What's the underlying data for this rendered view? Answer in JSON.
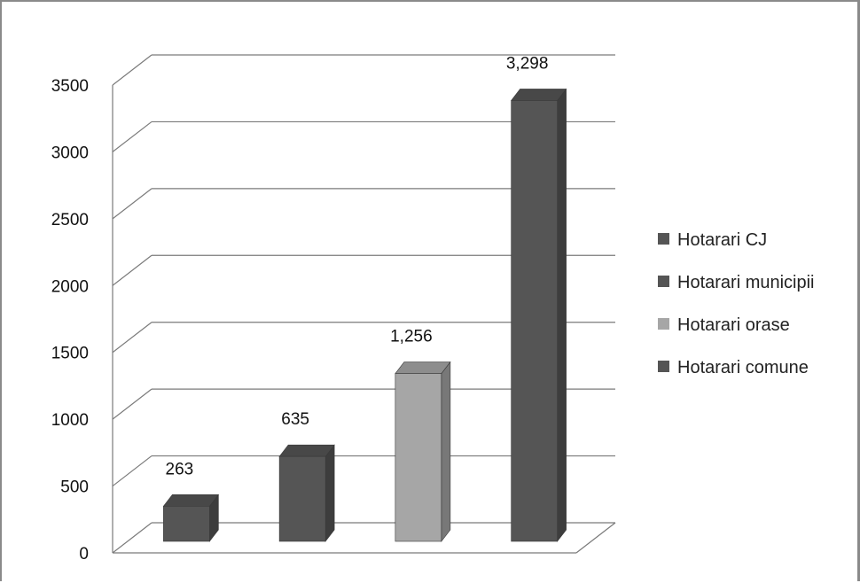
{
  "chart_data": {
    "type": "bar",
    "title": "",
    "xlabel": "",
    "ylabel": "",
    "three_d": true,
    "grid": true,
    "legend_position": "right",
    "ylim": [
      0,
      3500
    ],
    "yticks": [
      0,
      500,
      1000,
      1500,
      2000,
      2500,
      3000,
      3500
    ],
    "ytick_labels": [
      "0",
      "500",
      "1000",
      "1500",
      "2000",
      "2500",
      "3000",
      "3500"
    ],
    "series": [
      {
        "name": "Hotarari CJ",
        "value": 263,
        "data_label": "263",
        "color": "#555555"
      },
      {
        "name": "Hotarari municipii",
        "value": 635,
        "data_label": "635",
        "color": "#555555"
      },
      {
        "name": "Hotarari orase",
        "value": 1256,
        "data_label": "1,256",
        "color": "#a6a6a6"
      },
      {
        "name": "Hotarari comune",
        "value": 3298,
        "data_label": "3,298",
        "color": "#555555"
      }
    ]
  }
}
